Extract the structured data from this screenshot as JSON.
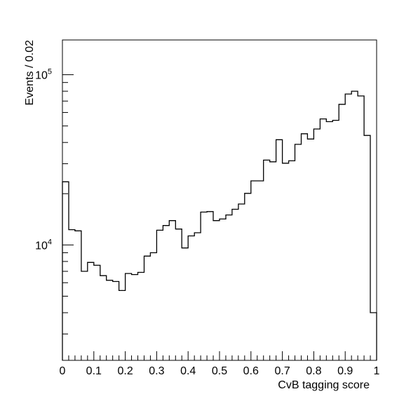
{
  "chart_data": {
    "type": "histogram",
    "title": "",
    "xlabel": "CvB tagging score",
    "ylabel": "Events / 0.02",
    "xlim": [
      0,
      1
    ],
    "ylim": [
      2100,
      160000
    ],
    "ylog": true,
    "grid": false,
    "legend": "none",
    "bin_width": 0.02,
    "x_ticks": [
      "0",
      "0.1",
      "0.2",
      "0.3",
      "0.4",
      "0.5",
      "0.6",
      "0.7",
      "0.8",
      "0.9",
      "1"
    ],
    "x_tick_values": [
      0,
      0.1,
      0.2,
      0.3,
      0.4,
      0.5,
      0.6,
      0.7,
      0.8,
      0.9,
      1
    ],
    "y_ticks": [
      {
        "value": 10000,
        "base": "10",
        "exp": "4"
      },
      {
        "value": 100000,
        "base": "10",
        "exp": "5"
      }
    ],
    "bin_edges_start": 0,
    "values": [
      23500,
      12300,
      12100,
      7000,
      7900,
      7600,
      6600,
      6200,
      6100,
      5400,
      6800,
      6700,
      6900,
      8600,
      9000,
      12200,
      13000,
      13900,
      12400,
      9600,
      11300,
      11800,
      15600,
      15700,
      13900,
      14200,
      15000,
      16200,
      17400,
      20100,
      23800,
      23800,
      31500,
      30800,
      41500,
      30200,
      31200,
      39000,
      45000,
      41900,
      48000,
      55000,
      53000,
      54000,
      67000,
      77000,
      80000,
      75000,
      44000,
      4000
    ],
    "line_color": "#000000"
  }
}
